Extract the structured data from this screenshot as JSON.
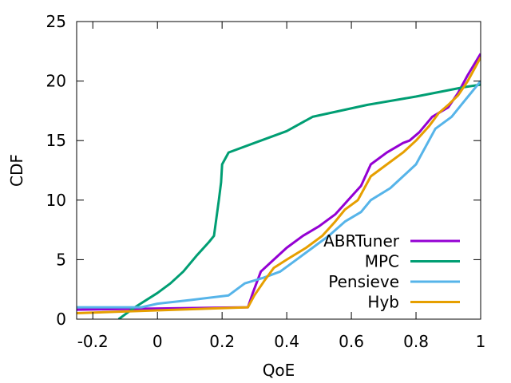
{
  "chart_data": {
    "type": "line",
    "title": "",
    "xlabel": "QoE",
    "ylabel": "CDF",
    "xlim": [
      -0.25,
      1.0
    ],
    "ylim": [
      0,
      25
    ],
    "xticks": [
      -0.2,
      0,
      0.2,
      0.4,
      0.6,
      0.8,
      1
    ],
    "xtick_labels": [
      "-0.2",
      "0",
      "0.2",
      "0.4",
      "0.6",
      "0.8",
      "1"
    ],
    "yticks": [
      0,
      5,
      10,
      15,
      20,
      25
    ],
    "ytick_labels": [
      "0",
      "5",
      "10",
      "15",
      "20",
      "25"
    ],
    "grid": false,
    "legend_position": "bottom-right",
    "series": [
      {
        "name": "ABRTuner",
        "color": "#9400D3",
        "points": [
          [
            -0.25,
            0.8
          ],
          [
            0.28,
            1.0
          ],
          [
            0.295,
            2.2
          ],
          [
            0.32,
            4.0
          ],
          [
            0.36,
            5.0
          ],
          [
            0.4,
            6.0
          ],
          [
            0.45,
            7.0
          ],
          [
            0.5,
            7.8
          ],
          [
            0.55,
            8.8
          ],
          [
            0.59,
            10.0
          ],
          [
            0.63,
            11.2
          ],
          [
            0.66,
            13.0
          ],
          [
            0.71,
            14.0
          ],
          [
            0.76,
            14.8
          ],
          [
            0.78,
            15.0
          ],
          [
            0.81,
            15.7
          ],
          [
            0.85,
            17.0
          ],
          [
            0.9,
            17.8
          ],
          [
            0.93,
            19.0
          ],
          [
            0.96,
            20.5
          ],
          [
            1.0,
            22.3
          ]
        ]
      },
      {
        "name": "MPC",
        "color": "#009E73",
        "points": [
          [
            -0.12,
            0.0
          ],
          [
            -0.07,
            1.0
          ],
          [
            0.0,
            2.2
          ],
          [
            0.04,
            3.0
          ],
          [
            0.08,
            4.0
          ],
          [
            0.12,
            5.3
          ],
          [
            0.16,
            6.5
          ],
          [
            0.175,
            7.0
          ],
          [
            0.19,
            10.0
          ],
          [
            0.197,
            11.5
          ],
          [
            0.2,
            13.0
          ],
          [
            0.22,
            14.0
          ],
          [
            0.3,
            14.8
          ],
          [
            0.4,
            15.8
          ],
          [
            0.48,
            17.0
          ],
          [
            0.65,
            18.0
          ],
          [
            0.8,
            18.7
          ],
          [
            0.95,
            19.5
          ],
          [
            1.0,
            19.7
          ]
        ]
      },
      {
        "name": "Pensieve",
        "color": "#56B4E9",
        "points": [
          [
            -0.25,
            1.0
          ],
          [
            -0.05,
            1.0
          ],
          [
            0.0,
            1.3
          ],
          [
            0.1,
            1.6
          ],
          [
            0.22,
            2.0
          ],
          [
            0.27,
            3.0
          ],
          [
            0.33,
            3.5
          ],
          [
            0.38,
            4.0
          ],
          [
            0.43,
            5.0
          ],
          [
            0.48,
            6.0
          ],
          [
            0.53,
            7.0
          ],
          [
            0.58,
            8.2
          ],
          [
            0.63,
            9.0
          ],
          [
            0.66,
            10.0
          ],
          [
            0.72,
            11.0
          ],
          [
            0.76,
            12.0
          ],
          [
            0.8,
            13.0
          ],
          [
            0.84,
            15.0
          ],
          [
            0.86,
            16.0
          ],
          [
            0.91,
            17.0
          ],
          [
            0.94,
            18.0
          ],
          [
            0.97,
            19.0
          ],
          [
            1.0,
            20.0
          ]
        ]
      },
      {
        "name": "Hyb",
        "color": "#E69F00",
        "points": [
          [
            -0.25,
            0.5
          ],
          [
            0.28,
            1.0
          ],
          [
            0.3,
            2.0
          ],
          [
            0.33,
            3.2
          ],
          [
            0.36,
            4.3
          ],
          [
            0.4,
            5.0
          ],
          [
            0.46,
            6.0
          ],
          [
            0.51,
            7.0
          ],
          [
            0.55,
            8.2
          ],
          [
            0.58,
            9.2
          ],
          [
            0.62,
            10.0
          ],
          [
            0.66,
            12.0
          ],
          [
            0.71,
            13.0
          ],
          [
            0.76,
            14.0
          ],
          [
            0.8,
            15.0
          ],
          [
            0.84,
            16.2
          ],
          [
            0.87,
            17.3
          ],
          [
            0.9,
            18.0
          ],
          [
            0.93,
            18.8
          ],
          [
            0.96,
            20.0
          ],
          [
            1.0,
            22.0
          ]
        ]
      }
    ]
  }
}
